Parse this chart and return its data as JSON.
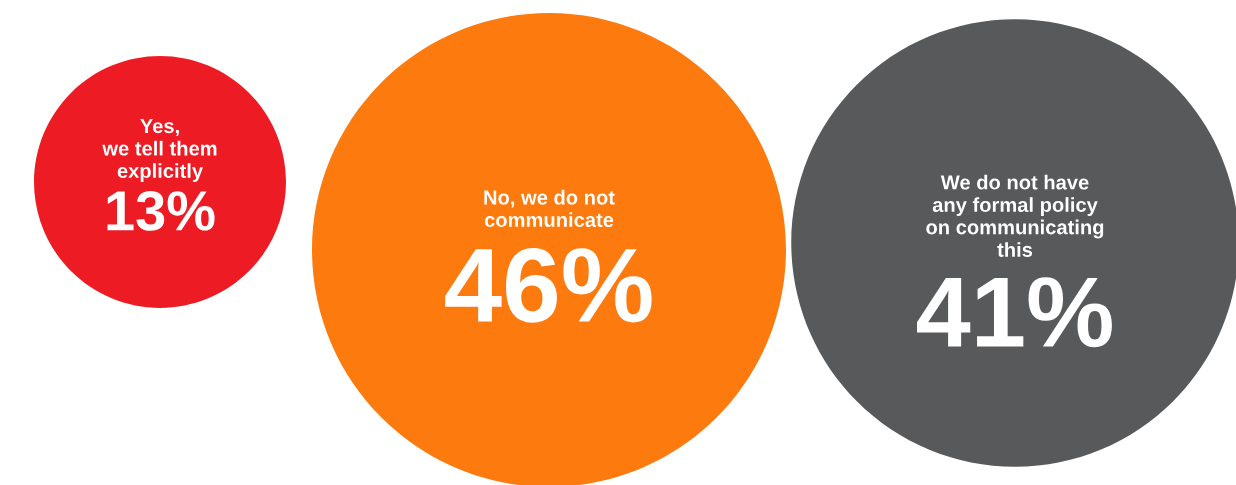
{
  "chart_data": {
    "type": "other",
    "categories": [
      "Yes,\nwe tell them\nexplicitly",
      "No, we do not\ncommunicate",
      "We do not have\nany formal policy\non communicating\nthis"
    ],
    "values": [
      13,
      46,
      41
    ],
    "value_labels": [
      "13%",
      "46%",
      "41%"
    ],
    "colors": [
      "#ed1c24",
      "#fd7a0e",
      "#58595b"
    ]
  }
}
